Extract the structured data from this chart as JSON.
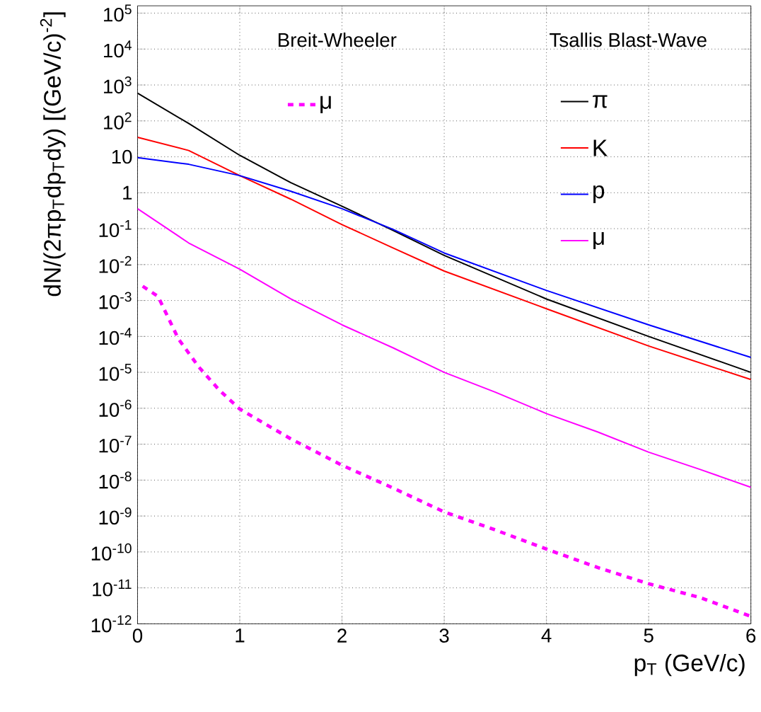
{
  "chart_data": {
    "type": "line",
    "xlabel": "p$_{T}$ (GeV/c)",
    "ylabel": "dN/(2πp$_{T}$dp$_{T}$dy) [(GeV/c)$^{-2}$]",
    "annotations": [
      "Breit-Wheeler",
      "Tsallis Blast-Wave"
    ],
    "xlim": [
      0,
      6
    ],
    "xticks": [
      0,
      1,
      2,
      3,
      4,
      5,
      6
    ],
    "ylim": [
      1e-12,
      160000.0
    ],
    "log": true,
    "grid": true,
    "legend": "top right",
    "yticks": [
      {
        "value": 100000.0,
        "label": "10$^{5}$"
      },
      {
        "value": 10000.0,
        "label": "10$^{4}$"
      },
      {
        "value": 1000.0,
        "label": "10$^{3}$"
      },
      {
        "value": 100.0,
        "label": "10$^{2}$"
      },
      10,
      1,
      {
        "value": 0.1,
        "label": "10$^{-1}$"
      },
      {
        "value": 0.01,
        "label": "10$^{-2}$"
      },
      {
        "value": 0.001,
        "label": "10$^{-3}$"
      },
      {
        "value": 0.0001,
        "label": "10$^{-4}$"
      },
      {
        "value": 1e-05,
        "label": "10$^{-5}$"
      },
      {
        "value": 1e-06,
        "label": "10$^{-6}$"
      },
      {
        "value": 1e-07,
        "label": "10$^{-7}$"
      },
      {
        "value": 1e-08,
        "label": "10$^{-8}$"
      },
      {
        "value": 1e-09,
        "label": "10$^{-9}$"
      },
      {
        "value": 1e-10,
        "label": "10$^{-10}$"
      },
      {
        "value": 1e-11,
        "label": "10$^{-11}$"
      },
      {
        "value": 1e-12,
        "label": "10$^{-12}$"
      }
    ],
    "series": [
      {
        "name": "π",
        "color": "#000000",
        "line_style": "solid",
        "x": [
          0,
          0.5,
          1,
          1.5,
          2,
          2.5,
          3,
          4,
          5,
          6
        ],
        "values": [
          590,
          85,
          11,
          1.9,
          0.42,
          0.089,
          0.018,
          0.0011,
          0.0001,
          1e-05
        ]
      },
      {
        "name": "K",
        "color": "#ff0000",
        "line_style": "solid",
        "x": [
          0,
          0.5,
          1,
          1.5,
          2,
          2.5,
          3,
          4,
          5,
          6
        ],
        "values": [
          35,
          15,
          3.0,
          0.66,
          0.13,
          0.029,
          0.0066,
          0.00059,
          5.4e-05,
          6.3e-06
        ]
      },
      {
        "name": "p",
        "color": "#0000ff",
        "line_style": "solid",
        "x": [
          0,
          0.5,
          1,
          1.5,
          2,
          2.5,
          3,
          4,
          5,
          6
        ],
        "values": [
          9.5,
          6.2,
          3.0,
          1.1,
          0.36,
          0.095,
          0.021,
          0.0019,
          0.00021,
          2.6e-05
        ]
      },
      {
        "name": "μ",
        "color": "#ff00ff",
        "line_style": "solid",
        "x": [
          0,
          0.5,
          1,
          1.5,
          2,
          2.5,
          3,
          3.5,
          4,
          4.5,
          5,
          5.5,
          6
        ],
        "values": [
          0.36,
          0.04,
          0.0074,
          0.0011,
          0.00021,
          4.8e-05,
          1e-05,
          2.8e-06,
          7.1e-07,
          2.2e-07,
          6e-08,
          2e-08,
          6.3e-09
        ]
      },
      {
        "name": "μ",
        "color": "#ff00ff",
        "line_style": "dashed",
        "x": [
          0.05,
          0.2,
          0.4,
          0.6,
          0.8,
          1,
          1.5,
          2,
          2.5,
          3,
          3.5,
          4,
          4.5,
          5,
          5.5,
          6
        ],
        "values": [
          0.0025,
          0.0013,
          8.5e-05,
          1.4e-05,
          3.2e-06,
          9.5e-07,
          1.4e-07,
          2.6e-08,
          6e-09,
          1.3e-09,
          4.1e-10,
          1.2e-10,
          3.7e-11,
          1.3e-11,
          5.4e-12,
          1.6e-12
        ]
      }
    ]
  }
}
